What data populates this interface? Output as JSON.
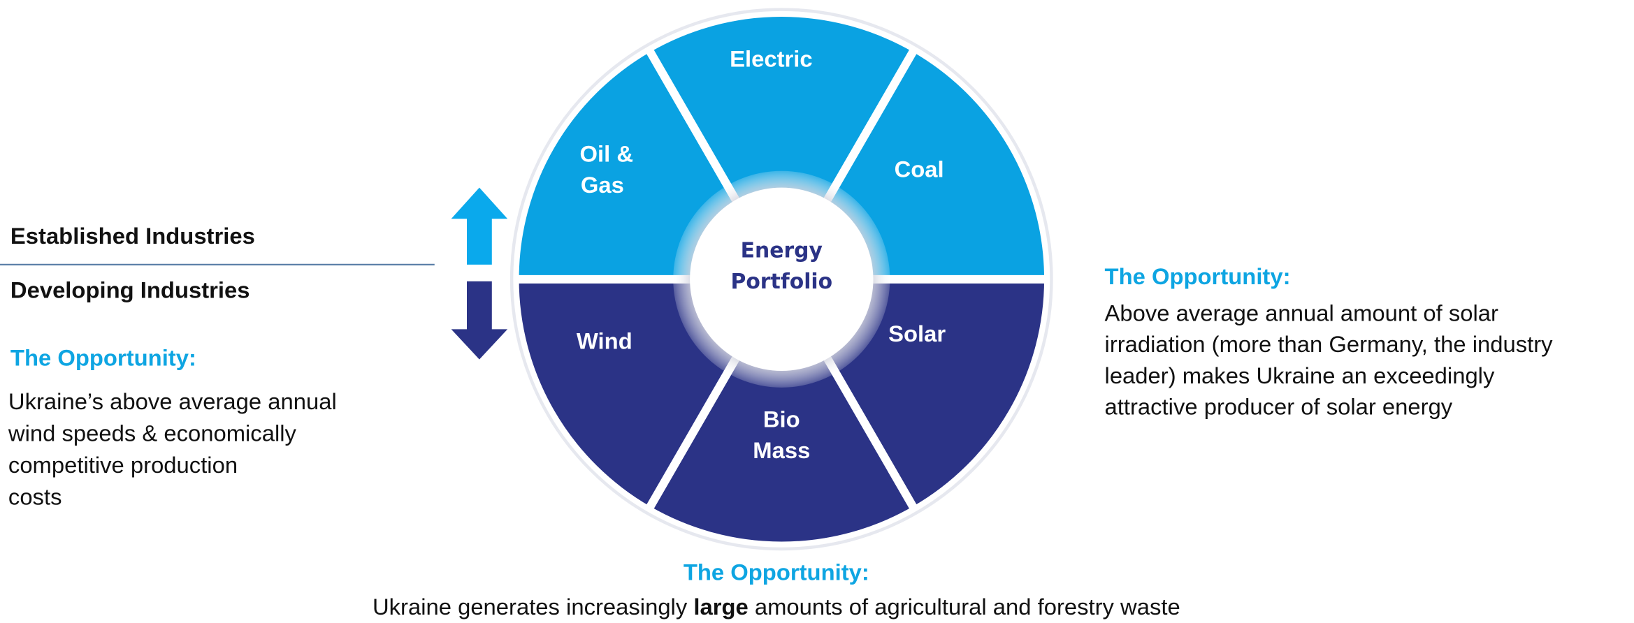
{
  "center": {
    "lines": [
      "Energy",
      "Portfolio"
    ]
  },
  "segments": [
    {
      "lines": [
        "Electric"
      ]
    },
    {
      "lines": [
        "Oil &",
        "Gas"
      ]
    },
    {
      "lines": [
        "Coal"
      ]
    },
    {
      "lines": [
        "Wind"
      ]
    },
    {
      "lines": [
        "Solar"
      ]
    },
    {
      "lines": [
        "Bio",
        "Mass"
      ]
    }
  ],
  "legend": {
    "established": "Established Industries",
    "developing": "Developing Industries"
  },
  "wind_opportunity": {
    "title": "The Opportunity:",
    "lines": [
      "Ukraine’s above average annual",
      "wind speeds & economically",
      "competitive  production",
      "costs"
    ]
  },
  "solar_opportunity": {
    "title": "The Opportunity:",
    "lines": [
      "Above average annual amount of solar",
      "irradiation (more than Germany, the industry",
      "leader) makes Ukraine an exceedingly",
      "attractive producer of solar energy"
    ]
  },
  "biomass_opportunity": {
    "title": "The Opportunity:",
    "parts": [
      "Ukraine generates increasingly ",
      "large",
      " amounts of agricultural and forestry waste"
    ]
  }
}
